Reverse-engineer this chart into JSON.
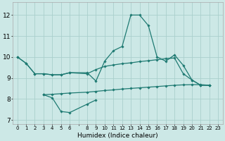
{
  "xlabel": "Humidex (Indice chaleur)",
  "bg_color": "#cce8e6",
  "grid_color": "#aacfcc",
  "line_color": "#1e7a72",
  "xlim": [
    -0.5,
    23.5
  ],
  "ylim": [
    6.8,
    12.6
  ],
  "yticks": [
    7,
    8,
    9,
    10,
    11,
    12
  ],
  "xtick_labels": [
    "0",
    "1",
    "2",
    "3",
    "4",
    "5",
    "6",
    "",
    "8",
    "9",
    "10",
    "11",
    "12",
    "13",
    "14",
    "15",
    "16",
    "17",
    "18",
    "19",
    "20",
    "21",
    "22",
    "23"
  ],
  "series": [
    [
      10.0,
      9.7,
      9.2,
      9.2,
      9.15,
      9.15,
      9.25,
      null,
      9.25,
      8.85,
      9.8,
      10.3,
      10.5,
      12.0,
      12.0,
      11.5,
      10.0,
      9.8,
      10.1,
      9.6,
      8.9,
      8.65,
      8.65
    ],
    [
      10.0,
      9.7,
      9.2,
      9.2,
      9.15,
      9.15,
      9.25,
      null,
      9.2,
      9.4,
      9.55,
      9.62,
      9.68,
      9.72,
      9.78,
      9.82,
      9.87,
      9.92,
      9.95,
      9.2,
      8.9,
      8.65,
      8.65
    ],
    [
      null,
      null,
      null,
      8.2,
      8.05,
      7.4,
      7.35,
      null,
      7.75,
      7.95,
      null,
      null,
      null,
      null,
      null,
      null,
      null,
      null,
      null,
      null,
      null,
      null,
      null
    ],
    [
      null,
      null,
      null,
      8.2,
      8.22,
      8.25,
      8.28,
      null,
      8.32,
      8.36,
      8.4,
      8.43,
      8.47,
      8.5,
      8.53,
      8.56,
      8.59,
      8.62,
      8.65,
      8.67,
      8.68,
      8.68,
      8.65
    ]
  ]
}
